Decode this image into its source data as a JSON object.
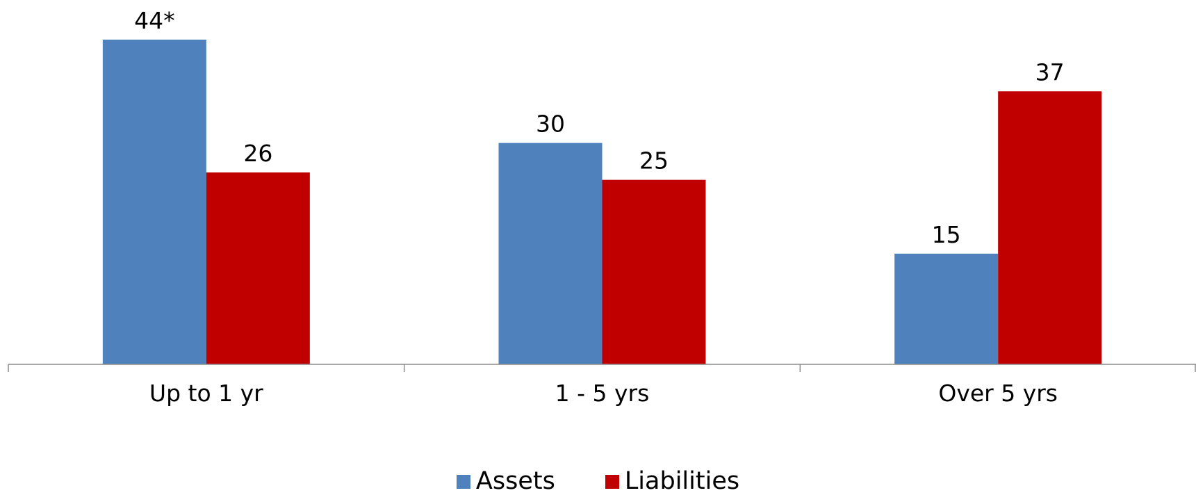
{
  "chart_data": {
    "type": "bar",
    "categories": [
      "Up to 1 yr",
      "1 - 5 yrs",
      "Over 5 yrs"
    ],
    "series": [
      {
        "name": "Assets",
        "values": [
          44,
          30,
          15
        ],
        "color": "#4F81BD"
      },
      {
        "name": "Liabilities",
        "values": [
          26,
          25,
          37
        ],
        "color": "#C00000"
      }
    ],
    "data_labels": [
      [
        "44*",
        "30",
        "15"
      ],
      [
        "26",
        "25",
        "37"
      ]
    ],
    "ylim": [
      0,
      44
    ],
    "grid": false,
    "legend": "bottom"
  }
}
